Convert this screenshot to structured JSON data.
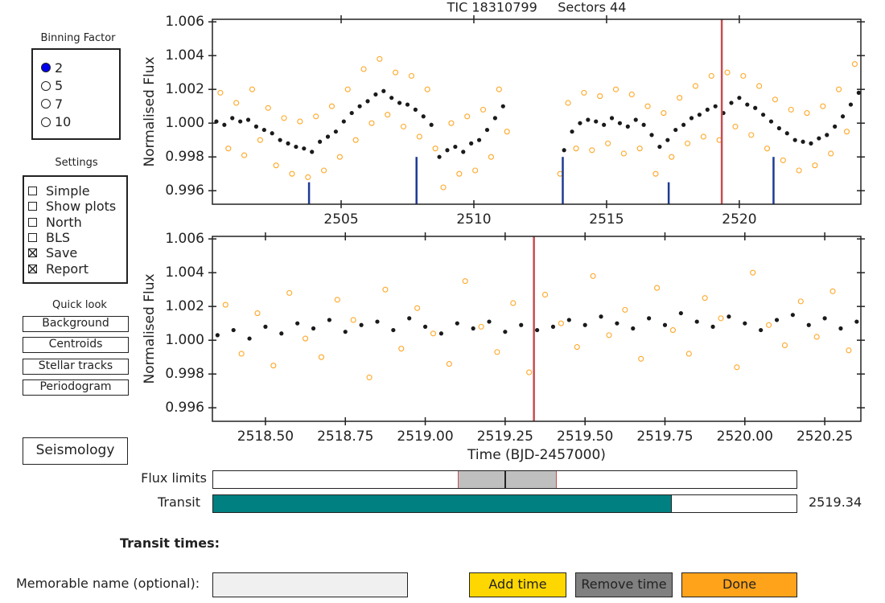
{
  "binning": {
    "title": "Binning Factor",
    "options": [
      "2",
      "5",
      "7",
      "10"
    ],
    "selected": 0
  },
  "settings": {
    "title": "Settings",
    "options": [
      {
        "label": "Simple",
        "checked": false
      },
      {
        "label": "Show plots",
        "checked": false
      },
      {
        "label": "North",
        "checked": false
      },
      {
        "label": "BLS",
        "checked": false
      },
      {
        "label": "Save",
        "checked": true
      },
      {
        "label": "Report",
        "checked": true
      }
    ]
  },
  "quick_look": {
    "title": "Quick look",
    "buttons": [
      "Background",
      "Centroids",
      "Stellar tracks",
      "Periodogram"
    ]
  },
  "seismology": "Seismology",
  "chart_data": [
    {
      "type": "scatter",
      "title": "TIC 18310799     Sectors 44",
      "ylabel": "Normalised Flux",
      "xlim": [
        2500.15,
        2524.58
      ],
      "ylim": [
        0.9952,
        1.00615
      ],
      "xticks": [
        2505,
        2510,
        2515,
        2520
      ],
      "yticks": [
        0.996,
        0.998,
        {
          "value": 1.0,
          "label": "1.000"
        },
        1.002,
        1.004,
        1.006
      ],
      "vline_color": "#c44e52",
      "transit_marks": {
        "color": "#1f3a93",
        "x": [
          2503.79,
          2507.84,
          2513.35,
          2517.34,
          2521.29
        ],
        "y": [
          0.9965,
          0.998,
          0.998,
          0.9965,
          0.998
        ]
      },
      "series": [
        {
          "color": "#ffa726",
          "marker": "open",
          "x": [
            2500.45,
            2500.75,
            2501.05,
            2501.35,
            2501.65,
            2501.95,
            2502.25,
            2502.55,
            2502.85,
            2503.15,
            2503.45,
            2503.75,
            2504.05,
            2504.35,
            2504.65,
            2504.95,
            2505.25,
            2505.55,
            2505.85,
            2506.15,
            2506.45,
            2506.75,
            2507.05,
            2507.35,
            2507.65,
            2507.95,
            2508.25,
            2508.55,
            2508.85,
            2509.15,
            2509.45,
            2509.75,
            2510.05,
            2510.35,
            2510.65,
            2510.95,
            2511.25,
            2513.25,
            2513.55,
            2513.85,
            2514.15,
            2514.45,
            2514.75,
            2515.05,
            2515.35,
            2515.65,
            2515.95,
            2516.25,
            2516.55,
            2516.85,
            2517.15,
            2517.45,
            2517.75,
            2518.05,
            2518.35,
            2518.65,
            2518.95,
            2519.25,
            2519.55,
            2519.85,
            2520.15,
            2520.45,
            2520.75,
            2521.05,
            2521.35,
            2521.65,
            2521.95,
            2522.25,
            2522.55,
            2522.85,
            2523.15,
            2523.45,
            2523.75,
            2524.05,
            2524.35
          ],
          "values": [
            1.0018,
            0.9985,
            1.0012,
            0.9981,
            1.002,
            0.999,
            1.0009,
            0.9975,
            1.0003,
            0.997,
            1.0001,
            0.9968,
            1.0004,
            0.9972,
            1.001,
            0.998,
            1.002,
            0.999,
            1.0032,
            1.0,
            1.0038,
            1.0005,
            1.003,
            0.9998,
            1.0028,
            0.9992,
            1.002,
            0.9985,
            0.9962,
            1.0,
            0.997,
            1.0004,
            0.9972,
            1.0008,
            0.998,
            1.002,
            0.9995,
            0.997,
            1.0012,
            0.9985,
            1.0018,
            0.9984,
            1.0016,
            0.9988,
            1.002,
            0.9982,
            1.0017,
            0.9985,
            1.001,
            0.997,
            1.0006,
            0.998,
            1.0015,
            0.9988,
            1.0022,
            0.9992,
            1.0028,
            0.999,
            1.003,
            0.9998,
            1.0028,
            0.9993,
            1.0022,
            0.9985,
            1.0014,
            0.9978,
            1.0008,
            0.9972,
            1.0006,
            0.9975,
            1.001,
            0.9982,
            1.002,
            0.9995,
            1.0035
          ]
        },
        {
          "color": "#1a1a1a",
          "marker": "filled",
          "x": [
            2500.3,
            2500.6,
            2500.9,
            2501.2,
            2501.5,
            2501.8,
            2502.1,
            2502.4,
            2502.7,
            2503.0,
            2503.3,
            2503.6,
            2503.9,
            2504.2,
            2504.5,
            2504.8,
            2505.1,
            2505.4,
            2505.7,
            2506.0,
            2506.3,
            2506.6,
            2506.9,
            2507.2,
            2507.5,
            2507.8,
            2508.1,
            2508.4,
            2508.7,
            2509.0,
            2509.3,
            2509.6,
            2509.9,
            2510.2,
            2510.5,
            2510.8,
            2511.1,
            2513.4,
            2513.7,
            2514.0,
            2514.3,
            2514.6,
            2514.9,
            2515.2,
            2515.5,
            2515.8,
            2516.1,
            2516.4,
            2516.7,
            2517.0,
            2517.3,
            2517.6,
            2517.9,
            2518.2,
            2518.5,
            2518.8,
            2519.1,
            2519.4,
            2519.7,
            2520.0,
            2520.3,
            2520.6,
            2520.9,
            2521.2,
            2521.5,
            2521.8,
            2522.1,
            2522.4,
            2522.7,
            2523.0,
            2523.3,
            2523.6,
            2523.9,
            2524.2,
            2524.5
          ],
          "values": [
            1.0001,
            0.9999,
            1.0003,
            1.0001,
            1.0002,
            0.9998,
            0.9996,
            0.9994,
            0.999,
            0.9988,
            0.9986,
            0.9985,
            0.9983,
            0.9989,
            0.9992,
            0.9995,
            1.0001,
            1.0006,
            1.001,
            1.0013,
            1.0017,
            1.0019,
            1.0015,
            1.0012,
            1.0011,
            1.0008,
            1.0004,
            0.9999,
            0.998,
            0.9984,
            0.9986,
            0.9983,
            0.9988,
            0.999,
            0.9996,
            1.0003,
            1.001,
            0.9984,
            0.9995,
            1.0,
            1.0002,
            1.0001,
            0.9999,
            1.0003,
            1.0,
            0.9998,
            1.0002,
            0.9999,
            0.9993,
            0.9986,
            0.999,
            0.9996,
            0.9999,
            1.0003,
            1.0005,
            1.0008,
            1.001,
            1.0006,
            1.0012,
            1.0015,
            1.0011,
            1.0009,
            1.0005,
            1.0001,
            0.9997,
            0.9994,
            0.999,
            0.9989,
            0.9988,
            0.9991,
            0.9993,
            0.9998,
            1.0004,
            1.0011,
            1.0018
          ]
        }
      ]
    },
    {
      "type": "scatter",
      "ylabel": "Normalised Flux",
      "xlabel": "Time (BJD-2457000)",
      "xlim": [
        2518.334,
        2520.363
      ],
      "ylim": [
        0.9952,
        1.00615
      ],
      "xticks": [
        {
          "value": 2518.5,
          "label": "2518.50"
        },
        {
          "value": 2518.75,
          "label": "2518.75"
        },
        {
          "value": 2519.0,
          "label": "2519.00"
        },
        {
          "value": 2519.25,
          "label": "2519.25"
        },
        {
          "value": 2519.5,
          "label": "2519.50"
        },
        {
          "value": 2519.75,
          "label": "2519.75"
        },
        {
          "value": 2520.0,
          "label": "2520.00"
        },
        {
          "value": 2520.25,
          "label": "2520.25"
        }
      ],
      "yticks": [
        0.996,
        0.998,
        {
          "value": 1.0,
          "label": "1.000"
        },
        1.002,
        1.004,
        1.006
      ],
      "vline_color": "#c44e52",
      "series": [
        {
          "color": "#ffa726",
          "marker": "open",
          "x": [
            2518.375,
            2518.425,
            2518.475,
            2518.525,
            2518.575,
            2518.625,
            2518.675,
            2518.725,
            2518.775,
            2518.825,
            2518.875,
            2518.925,
            2518.975,
            2519.025,
            2519.075,
            2519.125,
            2519.175,
            2519.225,
            2519.275,
            2519.325,
            2519.375,
            2519.425,
            2519.475,
            2519.525,
            2519.575,
            2519.625,
            2519.675,
            2519.725,
            2519.775,
            2519.825,
            2519.875,
            2519.925,
            2519.975,
            2520.025,
            2520.075,
            2520.125,
            2520.175,
            2520.225,
            2520.275,
            2520.325
          ],
          "values": [
            1.0021,
            0.9992,
            1.0016,
            0.9985,
            1.0028,
            1.0001,
            0.999,
            1.0024,
            1.0012,
            0.9978,
            1.003,
            0.9995,
            1.0019,
            1.0004,
            0.9986,
            1.0035,
            1.0008,
            0.9993,
            1.0022,
            0.9981,
            1.0027,
            1.001,
            0.9996,
            1.0038,
            1.0003,
            1.0018,
            0.9989,
            1.0031,
            1.0006,
            0.9992,
            1.0025,
            1.0013,
            0.9984,
            1.004,
            1.0009,
            0.9997,
            1.0023,
            1.0002,
            1.0029,
            0.9994
          ]
        },
        {
          "color": "#1a1a1a",
          "marker": "filled",
          "x": [
            2518.35,
            2518.4,
            2518.45,
            2518.5,
            2518.55,
            2518.6,
            2518.65,
            2518.7,
            2518.75,
            2518.8,
            2518.85,
            2518.9,
            2518.95,
            2519.0,
            2519.05,
            2519.1,
            2519.15,
            2519.2,
            2519.25,
            2519.3,
            2519.35,
            2519.4,
            2519.45,
            2519.5,
            2519.55,
            2519.6,
            2519.65,
            2519.7,
            2519.75,
            2519.8,
            2519.85,
            2519.9,
            2519.95,
            2520.0,
            2520.05,
            2520.1,
            2520.15,
            2520.2,
            2520.25,
            2520.3,
            2520.35
          ],
          "values": [
            1.0003,
            1.0006,
            1.0001,
            1.0008,
            1.0004,
            1.001,
            1.0007,
            1.0012,
            1.0005,
            1.0009,
            1.0011,
            1.0006,
            1.0013,
            1.0008,
            1.0004,
            1.001,
            1.0007,
            1.0011,
            1.0005,
            1.0009,
            1.0006,
            1.0008,
            1.0012,
            1.0009,
            1.0014,
            1.001,
            1.0007,
            1.0013,
            1.0009,
            1.0016,
            1.0011,
            1.0008,
            1.0014,
            1.001,
            1.0006,
            1.0012,
            1.0015,
            1.0009,
            1.0013,
            1.0007,
            1.0011
          ]
        }
      ]
    }
  ],
  "sliders": {
    "flux_limits": {
      "label": "Flux limits",
      "lim": [
        0,
        1
      ],
      "values": [
        0.42,
        0.5,
        0.59
      ]
    },
    "transit": {
      "label": "Transit",
      "value": 2519.34,
      "color": "#008080"
    }
  },
  "transit_times_label": "Transit times:",
  "name_label": "Memorable name (optional):",
  "buttons": [
    {
      "label": "Add time",
      "color": "#ffd700"
    },
    {
      "label": "Remove time",
      "color": "#808080"
    },
    {
      "label": "Done",
      "color": "#ffa31a"
    }
  ]
}
